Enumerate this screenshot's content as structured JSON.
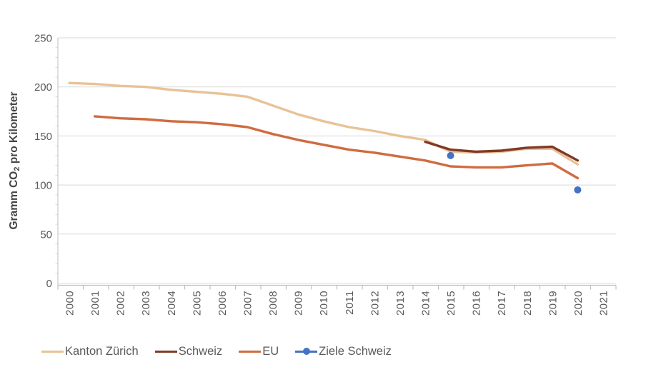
{
  "chart_data": {
    "type": "line",
    "title": "",
    "ylabel_prefix": "Gramm CO",
    "ylabel_sub": "2",
    "ylabel_suffix": " pro Kilometer",
    "x_categories": [
      "2000",
      "2001",
      "2002",
      "2003",
      "2004",
      "2005",
      "2006",
      "2007",
      "2008",
      "2009",
      "2010",
      "2011",
      "2012",
      "2013",
      "2014",
      "2015",
      "2016",
      "2017",
      "2018",
      "2019",
      "2020",
      "2021"
    ],
    "y_ticks": [
      0,
      50,
      100,
      150,
      200,
      250
    ],
    "y_minor_interval": 10,
    "ylim": [
      0,
      250
    ],
    "grid": "horizontal",
    "x_tick_rotation": -90,
    "legend_position": "bottom-left",
    "series": [
      {
        "name": "Kanton Zürich",
        "type": "line",
        "color": "#E8C297",
        "values": [
          204,
          203,
          201,
          200,
          197,
          195,
          193,
          190,
          181,
          172,
          165,
          159,
          155,
          150,
          146,
          134,
          133,
          134,
          137,
          137,
          121,
          null
        ]
      },
      {
        "name": "EU",
        "type": "line",
        "color": "#D06B40",
        "values": [
          null,
          170,
          168,
          167,
          165,
          164,
          162,
          159,
          152,
          146,
          141,
          136,
          133,
          129,
          125,
          119,
          118,
          118,
          120,
          122,
          107,
          null
        ]
      },
      {
        "name": "Schweiz",
        "type": "line",
        "color": "#803A26",
        "values": [
          null,
          null,
          null,
          null,
          null,
          null,
          null,
          null,
          null,
          null,
          null,
          null,
          null,
          null,
          144,
          136,
          134,
          135,
          138,
          139,
          125,
          null
        ]
      },
      {
        "name": "Ziele Schweiz",
        "type": "scatter",
        "color": "#4472C4",
        "values": [
          null,
          null,
          null,
          null,
          null,
          null,
          null,
          null,
          null,
          null,
          null,
          null,
          null,
          null,
          null,
          130,
          null,
          null,
          null,
          null,
          95,
          null
        ]
      }
    ]
  },
  "legend": {
    "items": [
      {
        "label": "Kanton Zürich",
        "color": "#E8C297",
        "marker": "line"
      },
      {
        "label": "Schweiz",
        "color": "#803A26",
        "marker": "line"
      },
      {
        "label": "EU",
        "color": "#D06B40",
        "marker": "line"
      },
      {
        "label": "Ziele Schweiz",
        "color": "#4472C4",
        "marker": "line-dot"
      }
    ]
  },
  "colors": {
    "gridline": "#D9D9D9",
    "axis_line": "#BFBFBF",
    "tick_label": "#595959",
    "axis_title": "#454545",
    "background": "#FFFFFF"
  }
}
